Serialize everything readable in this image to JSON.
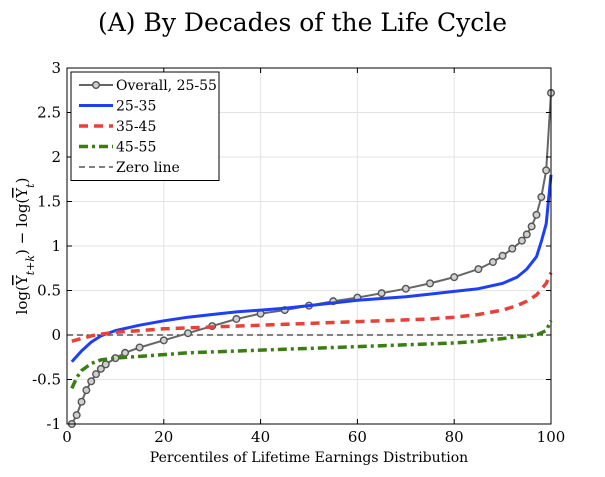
{
  "chart_data": {
    "type": "line",
    "title": "(A) By Decades of the Life Cycle",
    "xlabel": "Percentiles of Lifetime Earnings Distribution",
    "ylabel": "log(Y_{t+k}) - log(Y_t)",
    "xlim": [
      0,
      100
    ],
    "ylim": [
      -1,
      3
    ],
    "xticks": [
      0,
      20,
      40,
      60,
      80,
      100
    ],
    "yticks": [
      -1,
      -0.5,
      0,
      0.5,
      1,
      1.5,
      2,
      2.5,
      3
    ],
    "grid": true,
    "legend_position": "top-left",
    "series": [
      {
        "name": "Overall, 25-55",
        "color": "#666666",
        "style": "solid-circles",
        "x": [
          1,
          2,
          3,
          4,
          5,
          6,
          7,
          8,
          10,
          12,
          15,
          20,
          25,
          30,
          35,
          40,
          45,
          50,
          55,
          60,
          65,
          70,
          75,
          80,
          85,
          88,
          90,
          92,
          94,
          95,
          96,
          97,
          98,
          99,
          100
        ],
        "y": [
          -1.0,
          -0.9,
          -0.75,
          -0.62,
          -0.52,
          -0.44,
          -0.38,
          -0.33,
          -0.26,
          -0.2,
          -0.14,
          -0.06,
          0.02,
          0.1,
          0.18,
          0.24,
          0.28,
          0.33,
          0.38,
          0.42,
          0.47,
          0.52,
          0.58,
          0.65,
          0.74,
          0.82,
          0.89,
          0.97,
          1.06,
          1.13,
          1.22,
          1.35,
          1.55,
          1.85,
          2.72
        ]
      },
      {
        "name": "25-35",
        "color": "#1f3ff5",
        "style": "solid",
        "x": [
          1,
          3,
          5,
          7,
          10,
          15,
          20,
          25,
          30,
          35,
          40,
          45,
          50,
          55,
          60,
          65,
          70,
          75,
          80,
          85,
          90,
          93,
          95,
          97,
          98,
          99,
          100
        ],
        "y": [
          -0.3,
          -0.18,
          -0.08,
          -0.01,
          0.05,
          0.11,
          0.16,
          0.2,
          0.23,
          0.26,
          0.28,
          0.3,
          0.33,
          0.36,
          0.39,
          0.41,
          0.43,
          0.46,
          0.49,
          0.52,
          0.58,
          0.65,
          0.74,
          0.88,
          1.05,
          1.25,
          1.8
        ]
      },
      {
        "name": "35-45",
        "color": "#e8413a",
        "style": "dashed",
        "x": [
          1,
          3,
          5,
          7,
          10,
          15,
          20,
          25,
          30,
          35,
          40,
          45,
          50,
          55,
          60,
          65,
          70,
          75,
          80,
          85,
          90,
          93,
          95,
          97,
          99,
          100
        ],
        "y": [
          -0.07,
          -0.04,
          -0.01,
          0.01,
          0.03,
          0.05,
          0.07,
          0.08,
          0.09,
          0.1,
          0.11,
          0.12,
          0.13,
          0.14,
          0.15,
          0.16,
          0.17,
          0.18,
          0.2,
          0.23,
          0.28,
          0.33,
          0.38,
          0.45,
          0.58,
          0.7
        ]
      },
      {
        "name": "45-55",
        "color": "#3a7d12",
        "style": "dash-dot",
        "x": [
          1,
          2,
          3,
          5,
          7,
          10,
          15,
          20,
          25,
          30,
          35,
          40,
          45,
          50,
          55,
          60,
          65,
          70,
          75,
          80,
          85,
          90,
          93,
          95,
          97,
          99,
          100
        ],
        "y": [
          -0.6,
          -0.48,
          -0.4,
          -0.32,
          -0.28,
          -0.26,
          -0.24,
          -0.22,
          -0.2,
          -0.19,
          -0.18,
          -0.17,
          -0.16,
          -0.15,
          -0.14,
          -0.13,
          -0.12,
          -0.11,
          -0.1,
          -0.09,
          -0.07,
          -0.04,
          -0.02,
          -0.01,
          0.0,
          0.05,
          0.16
        ]
      },
      {
        "name": "Zero line",
        "color": "#000000",
        "style": "dashed-thin",
        "x": [
          0,
          100
        ],
        "y": [
          0,
          0
        ]
      }
    ]
  }
}
